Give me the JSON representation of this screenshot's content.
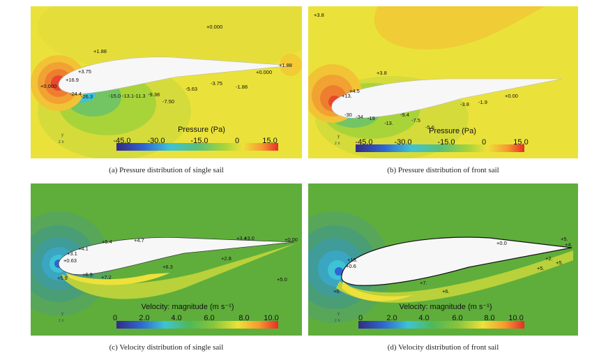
{
  "colors": {
    "pressure_bg": "#eae23a",
    "velocity_bg": "#5fae3b",
    "airfoil": "#f7f7f7"
  },
  "panels": [
    {
      "id": "a",
      "caption": "(a) Pressure distribution of single sail",
      "colorbar_title": "Pressure (Pa)",
      "ticks": [
        "-45.0",
        "-30.0",
        "-15.0",
        "0",
        "15.0"
      ],
      "labels": [
        "+0.000",
        "+1.88",
        "+1.88",
        "+0.000",
        "-3.75",
        "-1.88",
        "-5.63",
        "-7.50",
        "-9.38",
        "-11.3",
        "-13.1",
        "-15.0",
        "+0.000",
        "+3.75",
        "+16.9",
        "-24.4",
        "-26.3"
      ]
    },
    {
      "id": "b",
      "caption": "(b) Pressure distribution of front sail",
      "colorbar_title": "Pressure (Pa)",
      "ticks": [
        "-45.0",
        "-30.0",
        "-15.0",
        "0",
        "15.0"
      ],
      "labels": [
        "+3.8",
        "+3.8",
        "+0.00",
        "-1.9",
        "-3.8",
        "-5.6",
        "-7.5",
        "-9.4",
        "-13.",
        "-19",
        "+4.5",
        "+13.",
        "-30",
        "-34"
      ]
    },
    {
      "id": "c",
      "caption": "(c) Velocity distribution of single sail",
      "colorbar_title": "Velocity: magnitude (m s⁻¹)",
      "ticks": [
        "0",
        "2.0",
        "4.0",
        "6.0",
        "8.0",
        "10.0"
      ],
      "labels": [
        "+4.7",
        "+3.4",
        "+3.0",
        "+5.4",
        "+4.1",
        "+3.1",
        "+0.63",
        "+5.9",
        "+6.9",
        "+7.2",
        "+6.3",
        "+2.8",
        "+5.0",
        "+0.00"
      ]
    },
    {
      "id": "d",
      "caption": "(d) Velocity distribution of front sail",
      "colorbar_title": "Velocity: magnitude (m s⁻¹)",
      "ticks": [
        "0",
        "2.0",
        "4.0",
        "6.0",
        "8.0",
        "10.0"
      ],
      "labels": [
        "+0.0",
        "+5.",
        "+4.",
        "+2.",
        "+5.",
        "+5.",
        "+7.",
        "+6.",
        "+6.",
        "+13.",
        "+0.6"
      ]
    }
  ]
}
